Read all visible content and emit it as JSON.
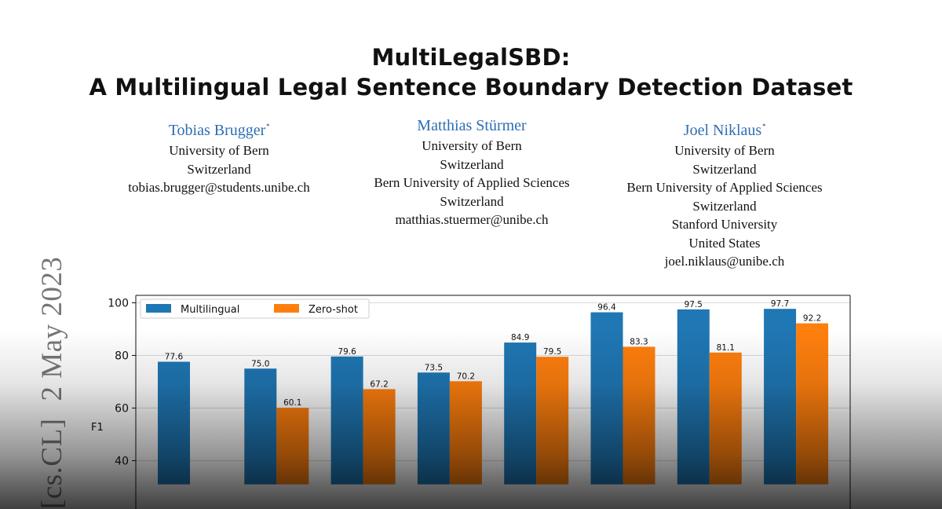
{
  "paper": {
    "title_line_1": "MultiLegalSBD:",
    "title_line_2": "A Multilingual Legal Sentence Boundary Detection Dataset",
    "authors": [
      {
        "name": "Tobias Brugger",
        "mark": "*",
        "lines": [
          "University of Bern",
          "Switzerland",
          "tobias.brugger@students.unibe.ch"
        ]
      },
      {
        "name": "Matthias Stürmer",
        "mark": "",
        "lines": [
          "University of Bern",
          "Switzerland",
          "Bern University of Applied Sciences",
          "Switzerland",
          "matthias.stuermer@unibe.ch"
        ]
      },
      {
        "name": "Joel Niklaus",
        "mark": "*",
        "lines": [
          "University of Bern",
          "Switzerland",
          "Bern University of Applied Sciences",
          "Switzerland",
          "Stanford University",
          "United States",
          "joel.niklaus@unibe.ch"
        ]
      }
    ],
    "arxiv_stamp": {
      "category": "[cs.CL]",
      "date": "2 May 2023"
    }
  },
  "chart_data": {
    "type": "bar",
    "ylabel": "F1",
    "ylim": [
      31,
      103
    ],
    "yticks": [
      40,
      60,
      80,
      100
    ],
    "grid": true,
    "legend_position": "top-left",
    "series": [
      {
        "name": "Multilingual",
        "color": "#1f77b4",
        "values": [
          77.6,
          75.0,
          79.6,
          73.5,
          84.9,
          96.4,
          97.5,
          97.7
        ]
      },
      {
        "name": "Zero-shot",
        "color": "#ff7f0e",
        "values": [
          null,
          60.1,
          67.2,
          70.2,
          79.5,
          83.3,
          81.1,
          92.2
        ]
      }
    ]
  }
}
